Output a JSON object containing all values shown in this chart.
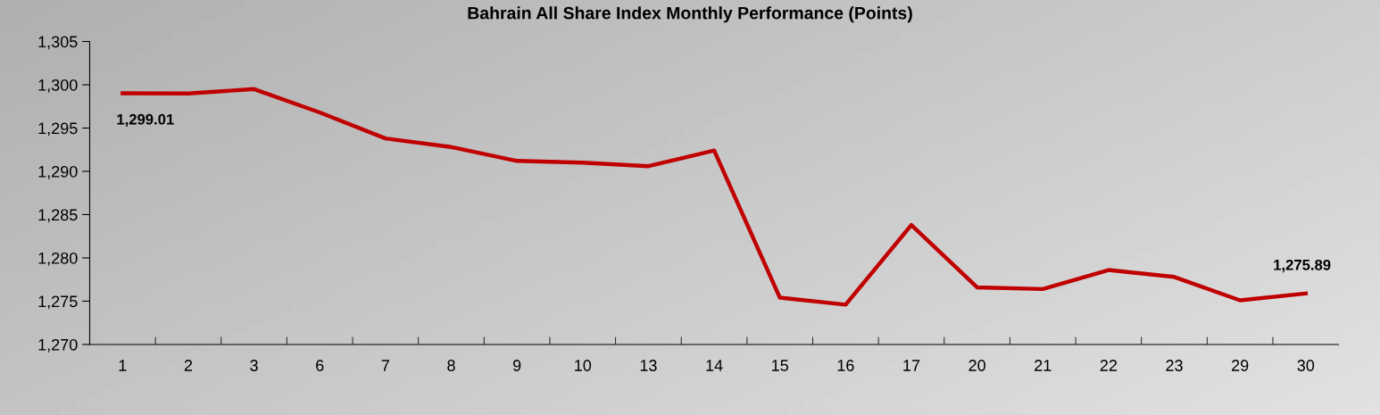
{
  "chart_data": {
    "type": "line",
    "title": "Bahrain All Share Index Monthly Performance (Points)",
    "categories": [
      "1",
      "2",
      "3",
      "6",
      "7",
      "8",
      "9",
      "10",
      "13",
      "14",
      "15",
      "16",
      "17",
      "20",
      "21",
      "22",
      "23",
      "29",
      "30"
    ],
    "series": [
      {
        "color": "#c00000",
        "values": [
          1299.01,
          1299.0,
          1299.5,
          1296.8,
          1293.8,
          1292.8,
          1291.2,
          1291.0,
          1290.6,
          1292.4,
          1275.4,
          1274.6,
          1283.8,
          1276.6,
          1276.4,
          1278.6,
          1277.8,
          1275.1,
          1275.89
        ],
        "value_labels": [
          "1,299.01",
          null,
          null,
          null,
          null,
          null,
          null,
          null,
          null,
          null,
          null,
          null,
          null,
          null,
          null,
          null,
          null,
          null,
          "1,275.89"
        ]
      }
    ],
    "ylim": [
      1270,
      1305
    ],
    "yticks": [
      {
        "value": 1270,
        "label": "1,270"
      },
      {
        "value": 1275,
        "label": "1,275"
      },
      {
        "value": 1280,
        "label": "1,280"
      },
      {
        "value": 1285,
        "label": "1,285"
      },
      {
        "value": 1290,
        "label": "1,290"
      },
      {
        "value": 1295,
        "label": "1,295"
      },
      {
        "value": 1300,
        "label": "1,300"
      },
      {
        "value": 1305,
        "label": "1,305"
      }
    ],
    "grid": false,
    "legend": false,
    "marker": "none",
    "line_style": "solid"
  }
}
